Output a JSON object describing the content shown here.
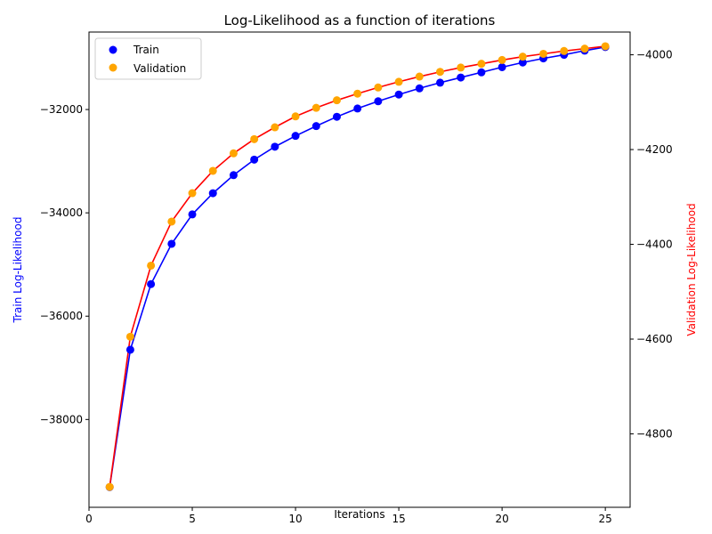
{
  "chart_data": {
    "type": "line",
    "title": "Log-Likelihood as a function of iterations",
    "xlabel": "Iterations",
    "ylabel_left": "Train Log-Likelihood",
    "ylabel_right": "Validation Log-Likelihood",
    "xlim": [
      0,
      26.2
    ],
    "ylim_left": [
      -39700,
      -30500
    ],
    "ylim_right": [
      -4955,
      -3952
    ],
    "xticks": [
      0,
      5,
      10,
      15,
      20,
      25
    ],
    "yticks_left": [
      -38000,
      -36000,
      -34000,
      -32000
    ],
    "yticks_right": [
      -4800,
      -4600,
      -4400,
      -4200,
      -4000
    ],
    "grid": false,
    "legend": "top-left",
    "x": [
      1,
      2,
      3,
      4,
      5,
      6,
      7,
      8,
      9,
      10,
      11,
      12,
      13,
      14,
      15,
      16,
      17,
      18,
      19,
      20,
      21,
      22,
      23,
      24,
      25
    ],
    "series": [
      {
        "name": "Train",
        "axis": "left",
        "line_color": "#0000ff",
        "marker_color": "#0000ff",
        "values": [
          -39310,
          -36650,
          -35380,
          -34600,
          -34030,
          -33620,
          -33270,
          -32970,
          -32720,
          -32510,
          -32320,
          -32140,
          -31980,
          -31840,
          -31710,
          -31590,
          -31480,
          -31380,
          -31280,
          -31180,
          -31090,
          -31010,
          -30940,
          -30860,
          -30790
        ]
      },
      {
        "name": "Validation",
        "axis": "right",
        "line_color": "#ff0000",
        "marker_color": "#ffa500",
        "values": [
          -4912,
          -4595,
          -4445,
          -4352,
          -4292,
          -4245,
          -4208,
          -4178,
          -4153,
          -4130,
          -4112,
          -4096,
          -4082,
          -4069,
          -4057,
          -4046,
          -4036,
          -4027,
          -4019,
          -4011,
          -4004,
          -3998,
          -3992,
          -3987,
          -3982
        ]
      }
    ]
  }
}
